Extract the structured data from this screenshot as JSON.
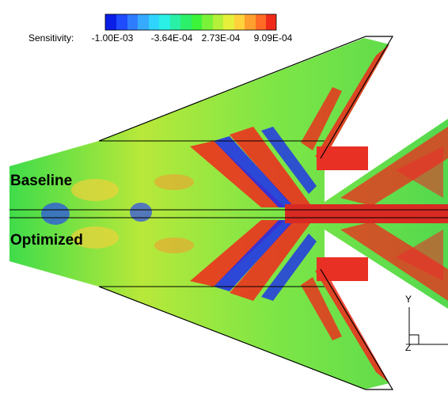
{
  "colorbar": {
    "label": "Sensitivity:",
    "ticks": [
      "-1.00E-03",
      "-3.64E-04",
      "2.73E-04",
      "9.09E-04"
    ]
  },
  "labels": {
    "baseline": "Baseline",
    "optimized": "Optimized"
  },
  "axes": {
    "y": "Y",
    "z": "Z"
  }
}
